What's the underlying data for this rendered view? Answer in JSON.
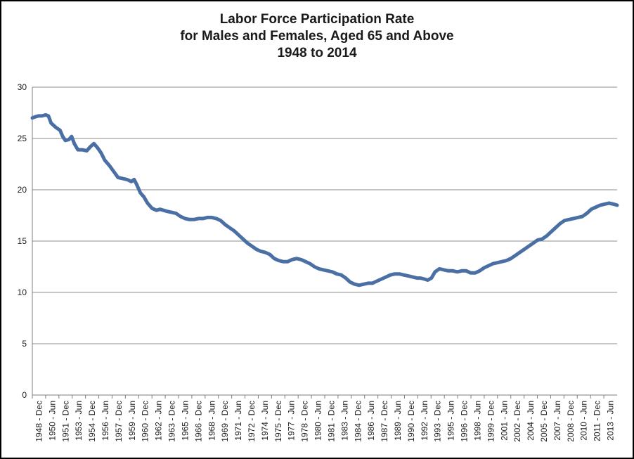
{
  "chart_data": {
    "type": "line",
    "title": [
      "Labor Force Participation Rate",
      "for Males and Females, Aged 65 and Above",
      "1948 to 2014"
    ],
    "xlabel": "",
    "ylabel": "",
    "ylim": [
      0,
      30
    ],
    "yticks": [
      0,
      5,
      10,
      15,
      20,
      25,
      30
    ],
    "x_tick_labels": [
      "1948 - Dec",
      "1950 - Jun",
      "1951 - Dec",
      "1953 - Jun",
      "1954 - Dec",
      "1956 - Jun",
      "1957 - Dec",
      "1959 - Jun",
      "1960 - Dec",
      "1962 - Jun",
      "1963 - Dec",
      "1965 - Jun",
      "1966 - Dec",
      "1968 - Jun",
      "1969 - Dec",
      "1971 - Jun",
      "1972 - Dec",
      "1974 - Jun",
      "1975 - Dec",
      "1977 - Jun",
      "1978 - Dec",
      "1980 - Jun",
      "1981 - Dec",
      "1983 - Jun",
      "1984 - Dec",
      "1986 - Jun",
      "1987 - Dec",
      "1989 - Jun",
      "1990 - Dec",
      "1992 - Jun",
      "1993 - Dec",
      "1995 - Jun",
      "1996 - Dec",
      "1998 - Jun",
      "1999 - Dec",
      "2001 - Jun",
      "2002 - Dec",
      "2004 - Jun",
      "2005 - Dec",
      "2007 - Jun",
      "2008 - Dec",
      "2010 - Jun",
      "2011 - Dec",
      "2013 - Jun"
    ],
    "grid": "horizontal",
    "line_color": "#4a6fa5",
    "series": [
      {
        "x": [
          1948.9,
          1949.2,
          1949.6,
          1950.0,
          1950.4,
          1950.7,
          1951.0,
          1951.5,
          1952.0,
          1952.3,
          1952.6,
          1953.0,
          1953.3,
          1953.6,
          1954.0,
          1954.5,
          1955.0,
          1955.4,
          1955.8,
          1956.2,
          1956.6,
          1957.0,
          1957.5,
          1958.0,
          1958.5,
          1959.0,
          1959.5,
          1960.0,
          1960.3,
          1960.6,
          1961.0,
          1961.4,
          1961.8,
          1962.3,
          1962.8,
          1963.2,
          1963.6,
          1964.0,
          1964.5,
          1965.0,
          1965.5,
          1966.0,
          1966.5,
          1967.0,
          1967.5,
          1968.0,
          1968.5,
          1969.0,
          1969.5,
          1970.0,
          1970.5,
          1971.0,
          1971.5,
          1972.0,
          1972.5,
          1973.0,
          1973.5,
          1974.0,
          1974.5,
          1975.0,
          1975.5,
          1976.0,
          1976.5,
          1977.0,
          1977.5,
          1978.0,
          1978.5,
          1979.0,
          1979.5,
          1980.0,
          1980.5,
          1981.0,
          1981.5,
          1982.0,
          1982.5,
          1983.0,
          1983.5,
          1984.0,
          1984.5,
          1985.0,
          1985.5,
          1986.0,
          1986.5,
          1987.0,
          1987.5,
          1988.0,
          1988.5,
          1989.0,
          1989.5,
          1990.0,
          1990.5,
          1991.0,
          1991.5,
          1992.0,
          1992.4,
          1992.8,
          1993.2,
          1993.6,
          1994.0,
          1994.5,
          1995.0,
          1995.5,
          1996.0,
          1996.5,
          1997.0,
          1997.5,
          1998.0,
          1998.5,
          1999.0,
          1999.5,
          2000.0,
          2000.5,
          2001.0,
          2001.5,
          2002.0,
          2002.5,
          2003.0,
          2003.5,
          2004.0,
          2004.5,
          2005.0,
          2005.5,
          2006.0,
          2006.5,
          2007.0,
          2007.5,
          2008.0,
          2008.5,
          2009.0,
          2009.5,
          2010.0,
          2010.5,
          2011.0,
          2011.5,
          2012.0,
          2012.5,
          2013.0,
          2013.5,
          2014.0,
          2014.4
        ],
        "y": [
          27.0,
          27.1,
          27.2,
          27.2,
          27.3,
          27.2,
          26.5,
          26.1,
          25.8,
          25.2,
          24.8,
          24.9,
          25.2,
          24.5,
          23.9,
          23.9,
          23.8,
          24.2,
          24.5,
          24.1,
          23.6,
          22.9,
          22.4,
          21.8,
          21.2,
          21.1,
          21.0,
          20.8,
          21.0,
          20.5,
          19.7,
          19.3,
          18.7,
          18.2,
          18.0,
          18.1,
          18.0,
          17.9,
          17.8,
          17.7,
          17.4,
          17.2,
          17.1,
          17.1,
          17.2,
          17.2,
          17.3,
          17.3,
          17.2,
          17.0,
          16.6,
          16.3,
          16.0,
          15.6,
          15.2,
          14.8,
          14.5,
          14.2,
          14.0,
          13.9,
          13.7,
          13.3,
          13.1,
          13.0,
          13.0,
          13.2,
          13.3,
          13.2,
          13.0,
          12.8,
          12.5,
          12.3,
          12.2,
          12.1,
          12.0,
          11.8,
          11.7,
          11.4,
          11.0,
          10.8,
          10.7,
          10.8,
          10.9,
          10.9,
          11.1,
          11.3,
          11.5,
          11.7,
          11.8,
          11.8,
          11.7,
          11.6,
          11.5,
          11.4,
          11.4,
          11.3,
          11.2,
          11.4,
          12.0,
          12.3,
          12.2,
          12.1,
          12.1,
          12.0,
          12.1,
          12.1,
          11.9,
          11.9,
          12.1,
          12.4,
          12.6,
          12.8,
          12.9,
          13.0,
          13.1,
          13.3,
          13.6,
          13.9,
          14.2,
          14.5,
          14.8,
          15.1,
          15.2,
          15.5,
          15.9,
          16.3,
          16.7,
          17.0,
          17.1,
          17.2,
          17.3,
          17.4,
          17.7,
          18.1,
          18.3,
          18.5,
          18.6,
          18.7,
          18.6,
          18.5
        ]
      }
    ]
  }
}
